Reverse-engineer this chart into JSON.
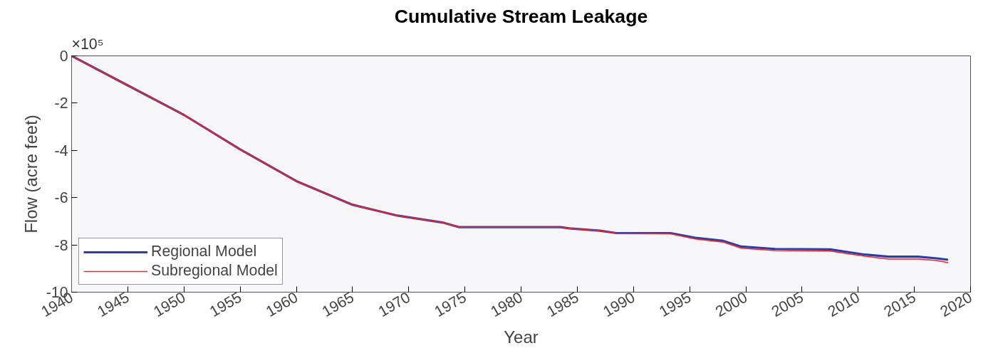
{
  "chart_data": {
    "type": "line",
    "title": "Cumulative Stream Leakage",
    "xlabel": "Year",
    "ylabel": "Flow (acre feet)",
    "annotations": [
      "×10⁵"
    ],
    "x": [
      1940,
      1945,
      1950,
      1955,
      1960,
      1965,
      1969,
      1973,
      1974.5,
      1983.5,
      1984.3,
      1987,
      1988.5,
      1993.3,
      1995.5,
      1998,
      1999.6,
      2002.6,
      2007.5,
      2010.6,
      2012.7,
      2015.3,
      2017,
      2018
    ],
    "series": [
      {
        "name": "Regional Model",
        "color": "#2b3fa8",
        "values": [
          0,
          -1.25,
          -2.5,
          -3.96,
          -5.3,
          -6.3,
          -6.76,
          -7.05,
          -7.25,
          -7.25,
          -7.3,
          -7.4,
          -7.5,
          -7.5,
          -7.7,
          -7.83,
          -8.07,
          -8.17,
          -8.19,
          -8.41,
          -8.5,
          -8.5,
          -8.57,
          -8.63
        ]
      },
      {
        "name": "Subregional Model",
        "color": "#ff2020",
        "values": [
          0,
          -1.25,
          -2.5,
          -3.96,
          -5.3,
          -6.3,
          -6.76,
          -7.05,
          -7.25,
          -7.25,
          -7.3,
          -7.4,
          -7.5,
          -7.53,
          -7.75,
          -7.88,
          -8.14,
          -8.24,
          -8.26,
          -8.48,
          -8.6,
          -8.6,
          -8.66,
          -8.75
        ]
      }
    ],
    "xlim": [
      1940,
      2020
    ],
    "ylim": [
      -10,
      0
    ],
    "xticks": [
      1940,
      1945,
      1950,
      1955,
      1960,
      1965,
      1970,
      1975,
      1980,
      1985,
      1990,
      1995,
      2000,
      2005,
      2010,
      2015,
      2020
    ],
    "yticks": [
      -10,
      -8,
      -6,
      -4,
      -2,
      0
    ],
    "grid": false,
    "legend": "bottom left",
    "marker": "none",
    "line_style": "solid"
  }
}
